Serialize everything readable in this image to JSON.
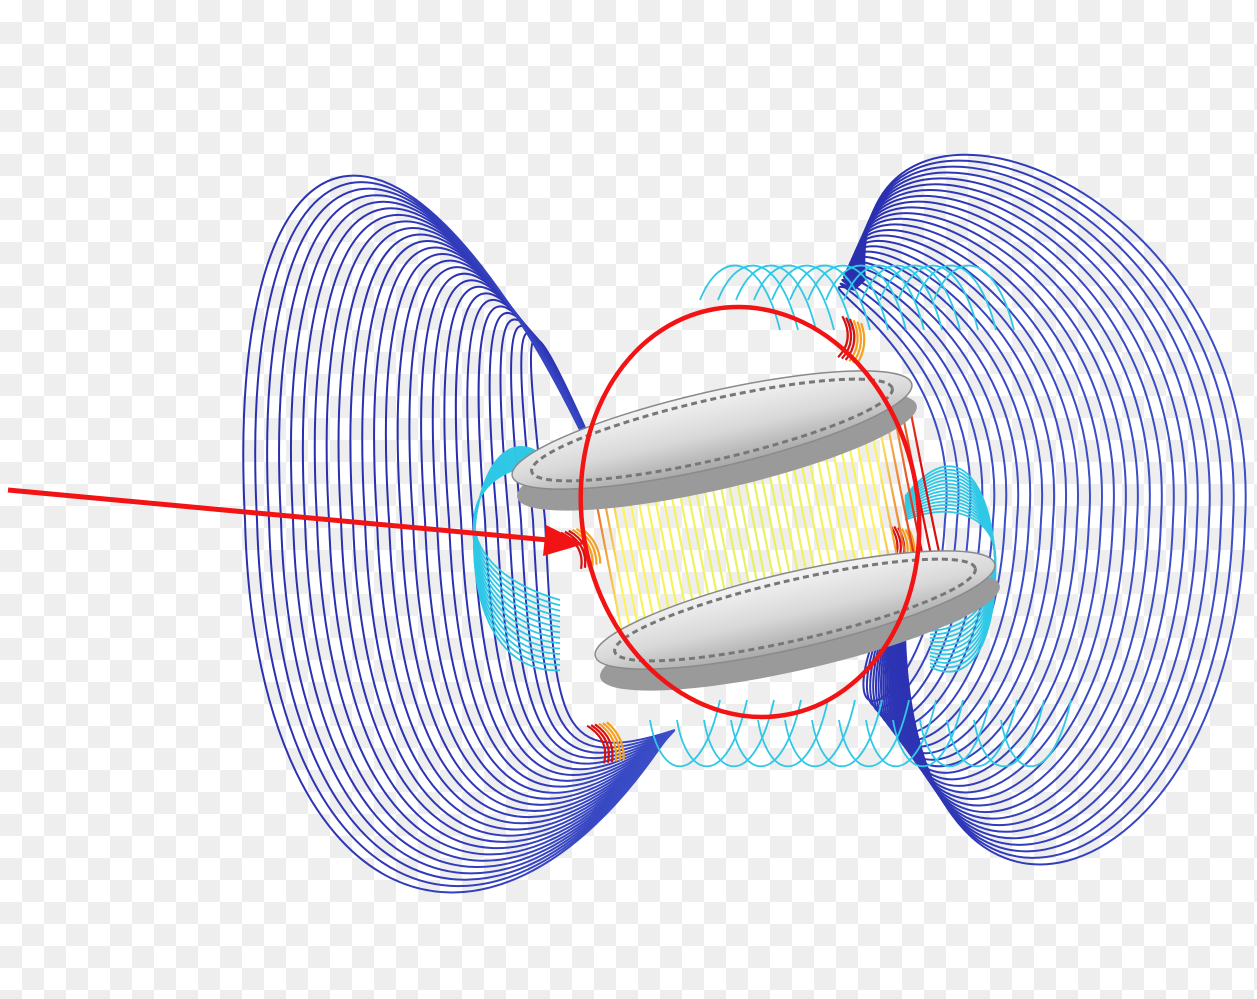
{
  "figure": {
    "subject": "helmholtz-coil-magnetic-field-lines",
    "field_line_scale": [
      "#2a2fb0",
      "#3f7fe0",
      "#2fd8e0",
      "#e8f060",
      "#fff35a",
      "#f5a020",
      "#d81010"
    ],
    "annotation": {
      "color": "#f21414",
      "marks": [
        "highlight-ellipse",
        "pointer-arrow"
      ]
    },
    "background": {
      "pattern": "checkerboard",
      "light": "#ffffff",
      "dark": "#eeeeee"
    }
  }
}
